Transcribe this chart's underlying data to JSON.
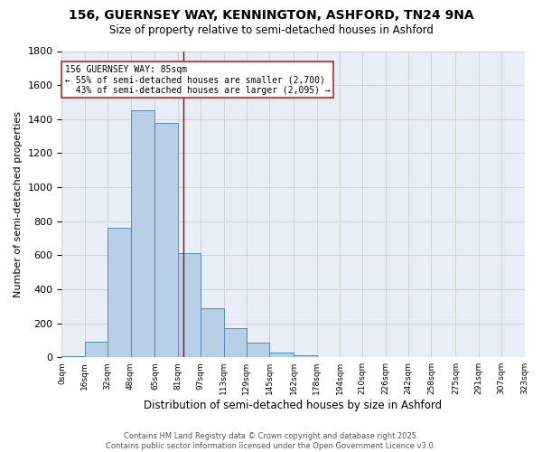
{
  "title": "156, GUERNSEY WAY, KENNINGTON, ASHFORD, TN24 9NA",
  "subtitle": "Size of property relative to semi-detached houses in Ashford",
  "xlabel": "Distribution of semi-detached houses by size in Ashford",
  "ylabel": "Number of semi-detached properties",
  "background_color": "#e8eef8",
  "bar_color": "#b8cfe8",
  "bar_edge_color": "#5588bb",
  "grid_color": "#cccccc",
  "bins": [
    0,
    16,
    32,
    48,
    65,
    81,
    97,
    113,
    129,
    145,
    162,
    178,
    194,
    210,
    226,
    242,
    258,
    275,
    291,
    307,
    323
  ],
  "bin_labels": [
    "0sqm",
    "16sqm",
    "32sqm",
    "48sqm",
    "65sqm",
    "81sqm",
    "97sqm",
    "113sqm",
    "129sqm",
    "145sqm",
    "162sqm",
    "178sqm",
    "194sqm",
    "210sqm",
    "226sqm",
    "242sqm",
    "258sqm",
    "275sqm",
    "291sqm",
    "307sqm",
    "323sqm"
  ],
  "bar_heights": [
    5,
    90,
    760,
    1450,
    1380,
    610,
    290,
    170,
    85,
    28,
    12,
    0,
    0,
    0,
    0,
    0,
    0,
    0,
    0,
    0
  ],
  "property_label": "156 GUERNSEY WAY: 85sqm",
  "pct_smaller": 55,
  "pct_larger": 43,
  "n_smaller": 2700,
  "n_larger": 2095,
  "vline_x": 85,
  "vline_color": "#aa0000",
  "annotation_box_color": "#cc2222",
  "ylim": [
    0,
    1800
  ],
  "yticks": [
    0,
    200,
    400,
    600,
    800,
    1000,
    1200,
    1400,
    1600,
    1800
  ],
  "footer_line1": "Contains HM Land Registry data © Crown copyright and database right 2025.",
  "footer_line2": "Contains public sector information licensed under the Open Government Licence v3.0."
}
